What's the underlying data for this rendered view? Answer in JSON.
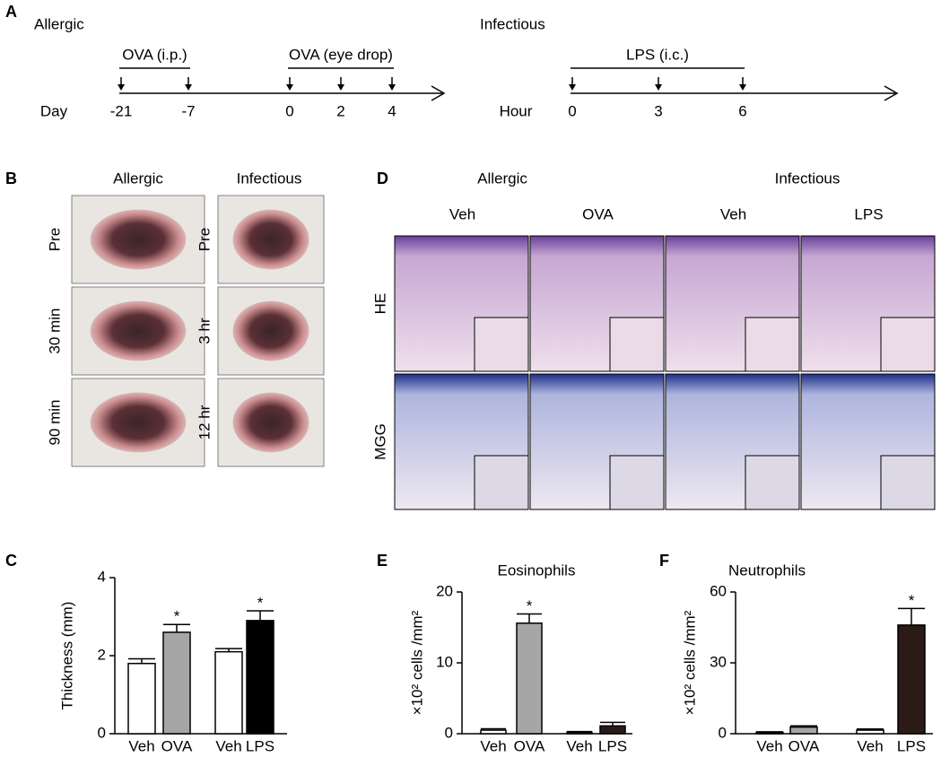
{
  "panel_labels": [
    "A",
    "B",
    "C",
    "D",
    "E",
    "F"
  ],
  "timeline": [
    {
      "title": "Allergic",
      "unit": "Day",
      "ticks": [
        "-21",
        "-7",
        "0",
        "2",
        "4"
      ],
      "phases": [
        "OVA (i.p.)",
        "OVA (eye drop)"
      ]
    },
    {
      "title": "Infectious",
      "unit": "Hour",
      "ticks": [
        "0",
        "3",
        "6"
      ],
      "phases": [
        "LPS (i.c.)"
      ]
    }
  ],
  "eye_photos": {
    "columns": [
      {
        "title": "Allergic",
        "rows": [
          "Pre",
          "30 min",
          "90 min"
        ]
      },
      {
        "title": "Infectious",
        "rows": [
          "Pre",
          "3 hr",
          "12 hr"
        ]
      }
    ]
  },
  "histology": {
    "groups": [
      "Allergic",
      "Infectious"
    ],
    "columns": [
      "Veh",
      "OVA",
      "Veh",
      "LPS"
    ],
    "rows": [
      "HE",
      "MGG"
    ]
  },
  "chart_data": [
    {
      "type": "bar",
      "ylabel": "Thickness (mm)",
      "categories": [
        "Veh",
        "OVA",
        "Veh",
        "LPS"
      ],
      "values": [
        1.8,
        2.6,
        2.1,
        2.9
      ],
      "errors": [
        0.12,
        0.2,
        0.08,
        0.25
      ],
      "colors": [
        "#ffffff",
        "#a6a6a6",
        "#ffffff",
        "#000000"
      ],
      "ylim": [
        0,
        4
      ],
      "yticks": [
        0,
        2,
        4
      ],
      "annotations": [
        {
          "text": "*",
          "category": "OVA"
        },
        {
          "text": "*",
          "category": "LPS"
        }
      ]
    },
    {
      "type": "bar",
      "title": "Eosinophils",
      "ylabel": "×10² cells /mm²",
      "categories": [
        "Veh",
        "OVA",
        "Veh",
        "LPS"
      ],
      "values": [
        0.5,
        15.6,
        0.2,
        1.1
      ],
      "errors": [
        0.2,
        1.3,
        0.1,
        0.5
      ],
      "colors": [
        "#ffffff",
        "#a6a6a6",
        "#ffffff",
        "#2b1a17"
      ],
      "ylim": [
        0,
        20
      ],
      "yticks": [
        0,
        10,
        20
      ],
      "annotations": [
        {
          "text": "*",
          "category": "OVA"
        }
      ]
    },
    {
      "type": "bar",
      "title": "Neutrophils",
      "ylabel": "×10² cells /mm²",
      "categories": [
        "Veh",
        "OVA",
        "Veh",
        "LPS"
      ],
      "values": [
        0.5,
        2.8,
        1.5,
        46
      ],
      "errors": [
        0.3,
        0.5,
        0.5,
        7
      ],
      "colors": [
        "#ffffff",
        "#a6a6a6",
        "#ffffff",
        "#2b1a17"
      ],
      "ylim": [
        0,
        60
      ],
      "yticks": [
        0,
        30,
        60
      ],
      "annotations": [
        {
          "text": "*",
          "category": "LPS"
        }
      ]
    }
  ]
}
